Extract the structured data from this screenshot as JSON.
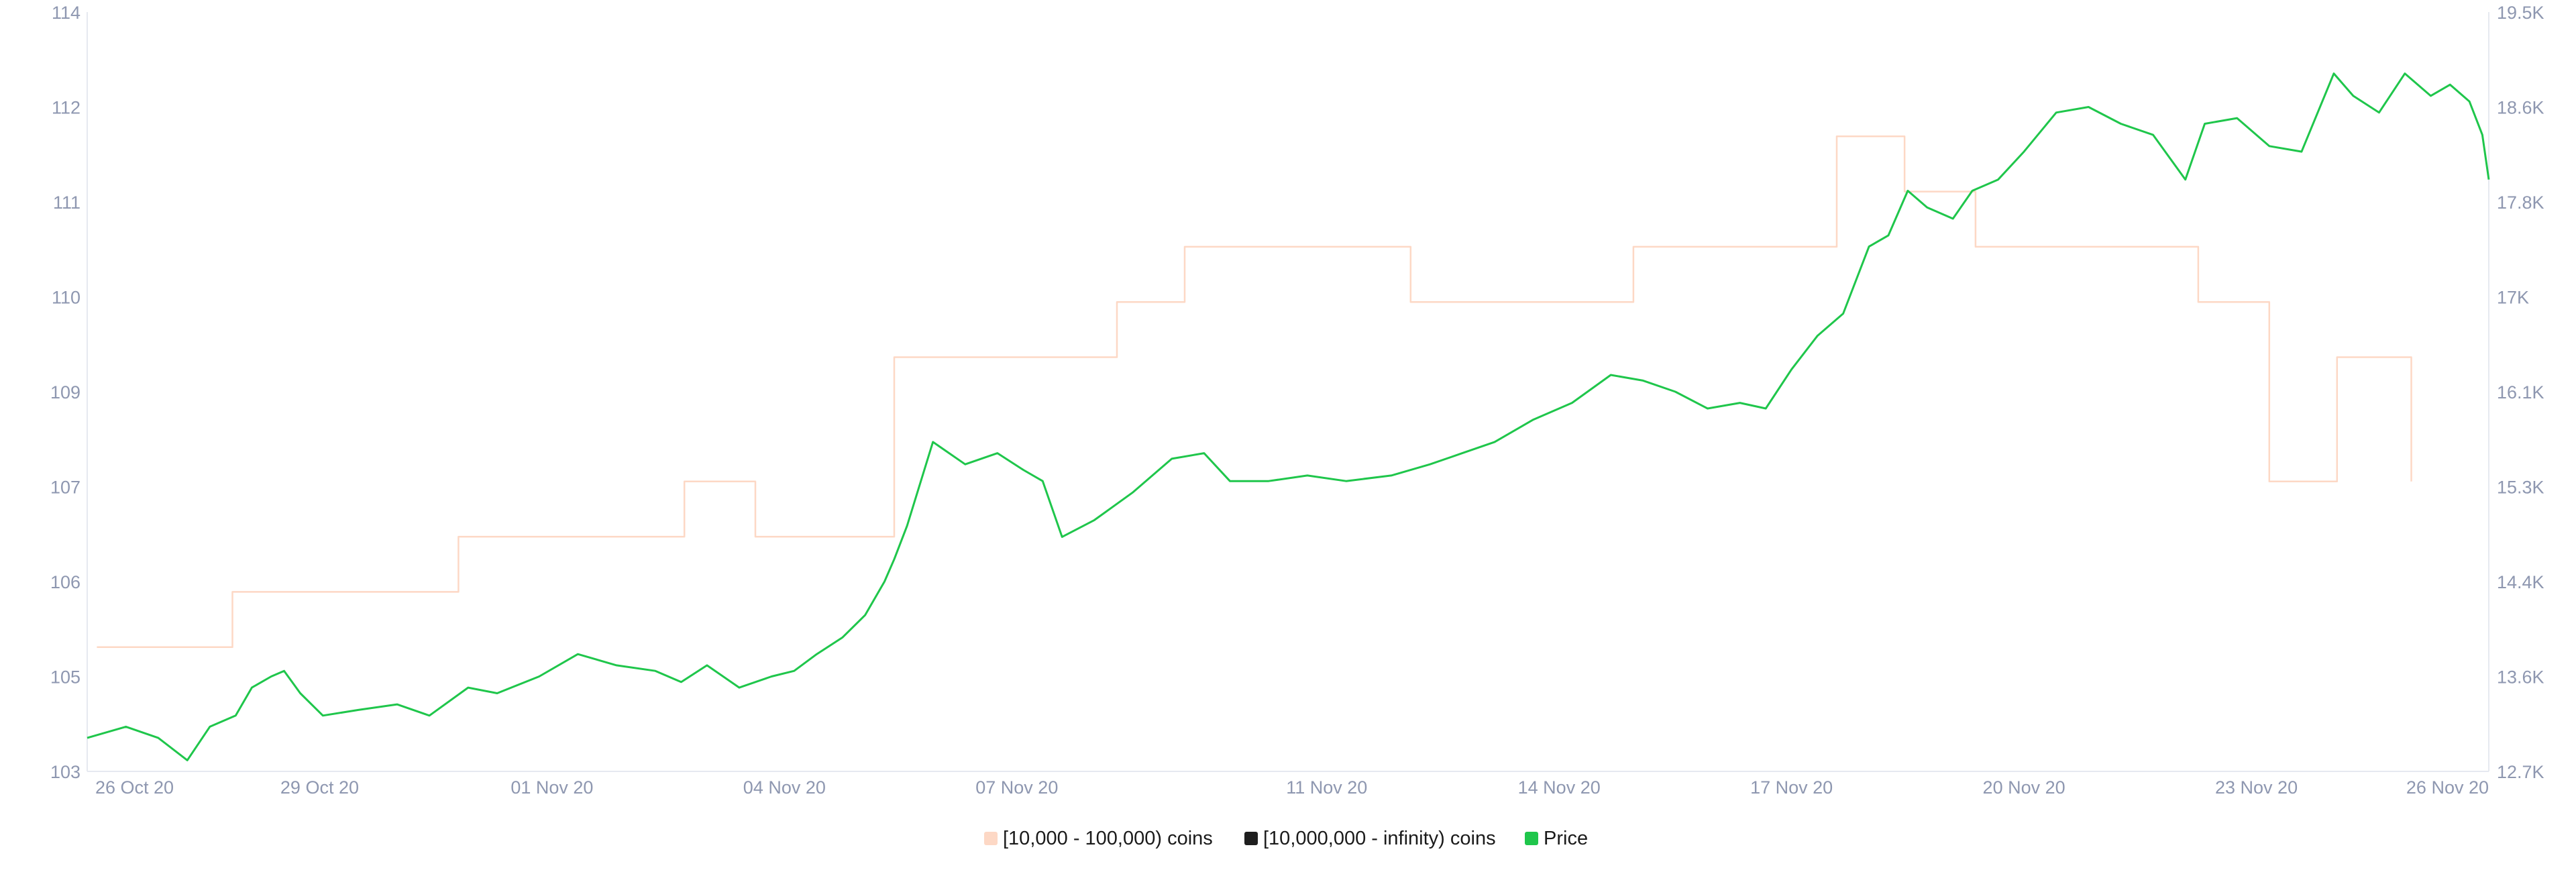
{
  "colors": {
    "whales_10k_100k": "#fdd8c5",
    "whales_10m_inf": "#1e1e1e",
    "price": "#1fc64b",
    "grid": "#e6e9f0",
    "tick_text": "#8e97b0"
  },
  "legend": [
    {
      "label": "[10,000 - 100,000) coins",
      "color_key": "whales_10k_100k"
    },
    {
      "label": "[10,000,000 - infinity) coins",
      "color_key": "whales_10m_inf"
    },
    {
      "label": "Price",
      "color_key": "price"
    }
  ],
  "chart_data": {
    "type": "line",
    "title": "",
    "xlabel": "",
    "ylabel_left": "",
    "ylabel_right": "",
    "x_ticks": [
      "26 Oct 20",
      "29 Oct 20",
      "01 Nov 20",
      "04 Nov 20",
      "07 Nov 20",
      "11 Nov 20",
      "14 Nov 20",
      "17 Nov 20",
      "20 Nov 20",
      "23 Nov 20",
      "26 Nov 20"
    ],
    "x_range": [
      "2020-10-26",
      "2020-11-26"
    ],
    "left_axis_ticks": [
      "103",
      "105",
      "106",
      "107",
      "109",
      "110",
      "111",
      "112",
      "114"
    ],
    "left_axis_range": [
      103,
      114
    ],
    "right_axis_ticks": [
      "12.7K",
      "13.6K",
      "14.4K",
      "15.3K",
      "16.1K",
      "17K",
      "17.8K",
      "18.6K",
      "19.5K"
    ],
    "right_axis_range": [
      12700,
      19500
    ],
    "legend_position": "bottom",
    "series": [
      {
        "name": "[10,000 - 100,000) coins",
        "axis": "left",
        "step": true,
        "x": [
          "2020-10-26T03:00",
          "2020-10-27T21:00",
          "2020-10-30T19:00",
          "2020-11-02T17:00",
          "2020-11-03T15:00",
          "2020-11-05T10:00",
          "2020-11-08T07:00",
          "2020-11-09T04:00",
          "2020-11-12T02:00",
          "2020-11-14T23:00",
          "2020-11-17T14:00",
          "2020-11-18T11:00",
          "2020-11-19T09:00",
          "2020-11-22T06:00",
          "2020-11-23T04:00",
          "2020-11-24T01:00",
          "2020-11-25T00:00"
        ],
        "y": [
          104.8,
          105.6,
          106.4,
          107.2,
          106.4,
          109.0,
          109.8,
          110.6,
          109.8,
          110.6,
          112.2,
          111.4,
          110.6,
          109.8,
          107.2,
          109.0,
          107.2
        ]
      },
      {
        "name": "[10,000,000 - infinity) coins",
        "axis": "left",
        "x": [],
        "y": []
      },
      {
        "name": "Price",
        "axis": "right",
        "x": [
          "2020-10-26T00:00",
          "2020-10-26T12:00",
          "2020-10-26T22:00",
          "2020-10-27T07:00",
          "2020-10-27T14:00",
          "2020-10-27T22:00",
          "2020-10-28T03:00",
          "2020-10-28T09:00",
          "2020-10-28T13:00",
          "2020-10-28T18:00",
          "2020-10-29T01:00",
          "2020-10-29T12:00",
          "2020-10-30T00:00",
          "2020-10-30T10:00",
          "2020-10-30T22:00",
          "2020-10-31T07:00",
          "2020-10-31T20:00",
          "2020-11-01T08:00",
          "2020-11-01T20:00",
          "2020-11-02T08:00",
          "2020-11-02T16:00",
          "2020-11-03T00:00",
          "2020-11-03T10:00",
          "2020-11-03T20:00",
          "2020-11-04T03:00",
          "2020-11-04T10:00",
          "2020-11-04T18:00",
          "2020-11-05T01:00",
          "2020-11-05T07:00",
          "2020-11-05T10:00",
          "2020-11-05T14:00",
          "2020-11-05T22:00",
          "2020-11-06T08:00",
          "2020-11-06T18:00",
          "2020-11-07T02:00",
          "2020-11-07T08:00",
          "2020-11-07T14:00",
          "2020-11-08T00:00",
          "2020-11-08T12:00",
          "2020-11-09T00:00",
          "2020-11-09T10:00",
          "2020-11-09T18:00",
          "2020-11-10T06:00",
          "2020-11-10T18:00",
          "2020-11-11T06:00",
          "2020-11-11T20:00",
          "2020-11-12T08:00",
          "2020-11-12T18:00",
          "2020-11-13T04:00",
          "2020-11-13T16:00",
          "2020-11-14T04:00",
          "2020-11-14T16:00",
          "2020-11-15T02:00",
          "2020-11-15T12:00",
          "2020-11-15T22:00",
          "2020-11-16T08:00",
          "2020-11-16T16:00",
          "2020-11-17T00:00",
          "2020-11-17T08:00",
          "2020-11-17T16:00",
          "2020-11-18T00:00",
          "2020-11-18T06:00",
          "2020-11-18T12:00",
          "2020-11-18T18:00",
          "2020-11-19T02:00",
          "2020-11-19T08:00",
          "2020-11-19T16:00",
          "2020-11-20T00:00",
          "2020-11-20T10:00",
          "2020-11-20T20:00",
          "2020-11-21T06:00",
          "2020-11-21T16:00",
          "2020-11-22T02:00",
          "2020-11-22T08:00",
          "2020-11-22T18:00",
          "2020-11-23T04:00",
          "2020-11-23T14:00",
          "2020-11-24T00:00",
          "2020-11-24T06:00",
          "2020-11-24T14:00",
          "2020-11-24T22:00",
          "2020-11-25T06:00",
          "2020-11-25T12:00",
          "2020-11-25T18:00",
          "2020-11-25T22:00",
          "2020-11-26T00:00"
        ],
        "y": [
          13000,
          13100,
          13000,
          12800,
          13100,
          13200,
          13450,
          13550,
          13600,
          13400,
          13200,
          13250,
          13300,
          13200,
          13450,
          13400,
          13550,
          13750,
          13650,
          13600,
          13500,
          13650,
          13450,
          13550,
          13600,
          13750,
          13900,
          14100,
          14400,
          14600,
          14900,
          15650,
          15450,
          15550,
          15400,
          15300,
          14800,
          14950,
          15200,
          15500,
          15550,
          15300,
          15300,
          15350,
          15300,
          15350,
          15450,
          15550,
          15650,
          15850,
          16000,
          16250,
          16200,
          16100,
          15950,
          16000,
          15950,
          16300,
          16600,
          16800,
          17400,
          17500,
          17900,
          17750,
          17650,
          17900,
          18000,
          18250,
          18600,
          18650,
          18500,
          18400,
          18000,
          18500,
          18550,
          18300,
          18250,
          18950,
          18750,
          18600,
          18950,
          18750,
          18850,
          18700,
          18400,
          18000
        ]
      }
    ]
  }
}
